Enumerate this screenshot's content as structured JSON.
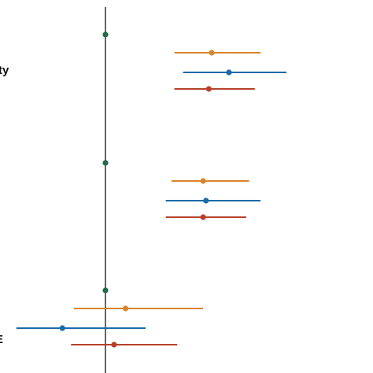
{
  "colors": {
    "reference": "#1e6b45",
    "series_orange": "#d9852a",
    "series_blue": "#1a6aa8",
    "series_red": "#b6412a",
    "axis": "#333333"
  },
  "chart_data": {
    "type": "forest",
    "title": "",
    "xlabel": "",
    "ylabel": "",
    "reference_value": 0,
    "xlim": [
      -1.6,
      4.4
    ],
    "grid": false,
    "legend": "none",
    "groups": [
      {
        "label": "ty",
        "reference": 0,
        "rows": [
          {
            "color": "orange",
            "estimate": 1.85,
            "low": 1.2,
            "high": 2.7
          },
          {
            "color": "blue",
            "estimate": 2.15,
            "low": 1.35,
            "high": 3.15
          },
          {
            "color": "red",
            "estimate": 1.8,
            "low": 1.2,
            "high": 2.6
          }
        ]
      },
      {
        "label": "",
        "reference": 0,
        "rows": [
          {
            "color": "orange",
            "estimate": 1.7,
            "low": 1.15,
            "high": 2.5
          },
          {
            "color": "blue",
            "estimate": 1.75,
            "low": 1.05,
            "high": 2.7
          },
          {
            "color": "red",
            "estimate": 1.7,
            "low": 1.05,
            "high": 2.45
          }
        ]
      },
      {
        "label": "E",
        "reference": 0,
        "rows": [
          {
            "color": "orange",
            "estimate": 0.35,
            "low": -0.55,
            "high": 1.7
          },
          {
            "color": "blue",
            "estimate": -0.75,
            "low": -1.55,
            "high": 0.7
          },
          {
            "color": "red",
            "estimate": 0.15,
            "low": -0.6,
            "high": 1.25
          }
        ]
      }
    ]
  }
}
